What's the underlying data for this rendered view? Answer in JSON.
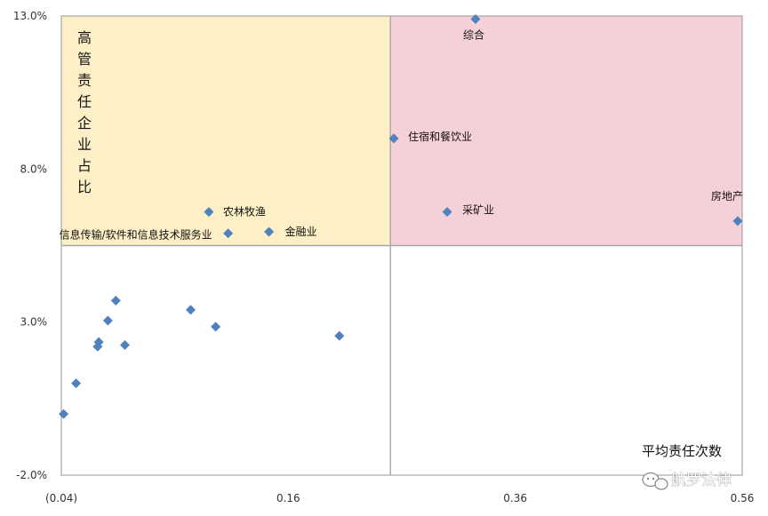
{
  "chart_data": {
    "type": "scatter",
    "title": "",
    "xlabel": "平均责任次数",
    "ylabel": "高管责任企业占比",
    "xlim": [
      -0.04,
      0.56
    ],
    "ylim": [
      -2.0,
      13.0
    ],
    "x_ticks": [
      "(0.04)",
      "0.16",
      "0.36",
      "0.56"
    ],
    "y_ticks": [
      "13.0%",
      "8.0%",
      "3.0%",
      "-2.0%"
    ],
    "grid": false,
    "quadrant_divider": {
      "x": 0.25,
      "y": 5.5
    },
    "quadrants": [
      {
        "name": "upper-left",
        "color": "#fdf0c6"
      },
      {
        "name": "upper-right",
        "color": "#f6d0d8"
      }
    ],
    "marker_color": "#4f81bd",
    "points": [
      {
        "label": "综合",
        "x": 0.325,
        "y": 12.9
      },
      {
        "label": "住宿和餐饮业",
        "x": 0.253,
        "y": 9.0
      },
      {
        "label": "房地产",
        "x": 0.556,
        "y": 6.3
      },
      {
        "label": "采矿业",
        "x": 0.3,
        "y": 6.6
      },
      {
        "label": "农林牧渔",
        "x": 0.09,
        "y": 6.6
      },
      {
        "label": "信息传输/软件和信息技术服务业",
        "x": 0.107,
        "y": 5.9
      },
      {
        "label": "金融业",
        "x": 0.143,
        "y": 5.95
      },
      {
        "label": "",
        "x": 0.008,
        "y": 3.7
      },
      {
        "label": "",
        "x": 0.001,
        "y": 3.05
      },
      {
        "label": "",
        "x": 0.074,
        "y": 3.4
      },
      {
        "label": "",
        "x": 0.096,
        "y": 2.85
      },
      {
        "label": "",
        "x": 0.205,
        "y": 2.55
      },
      {
        "label": "",
        "x": -0.007,
        "y": 2.35
      },
      {
        "label": "",
        "x": -0.008,
        "y": 2.2
      },
      {
        "label": "",
        "x": 0.016,
        "y": 2.25
      },
      {
        "label": "",
        "x": -0.027,
        "y": 1.0
      },
      {
        "label": "",
        "x": -0.038,
        "y": 0.0
      }
    ]
  },
  "watermark": {
    "icon": "chat-bubble-icon",
    "text": "航罗法律"
  }
}
